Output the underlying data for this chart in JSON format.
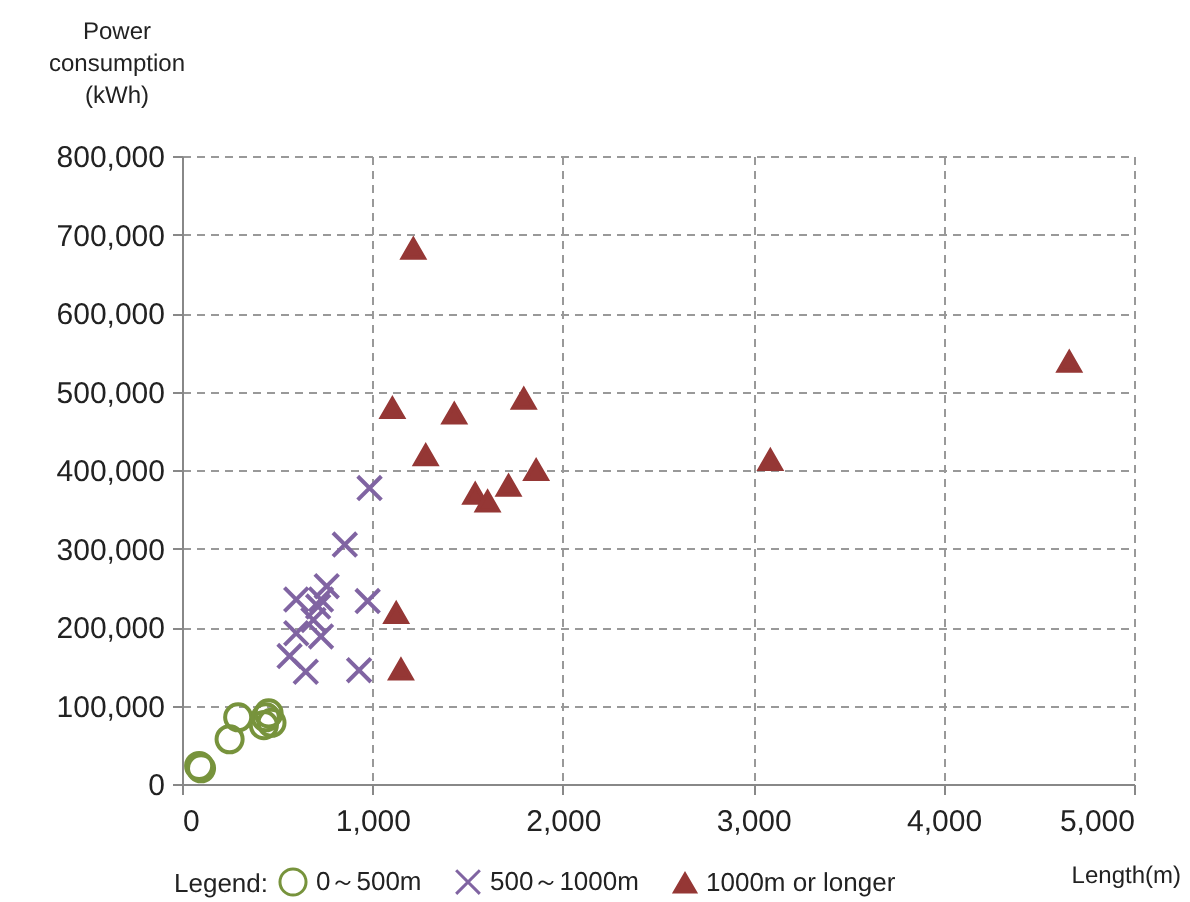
{
  "chart_data": {
    "type": "scatter",
    "xlabel": "Length(m)",
    "ylabel": "Power consumption (kWh)",
    "legend_title": "Legend:",
    "legend": "bottom",
    "grid": true,
    "xlim": [
      0,
      5000
    ],
    "xticks": [
      0,
      {
        "value": 1000,
        "label": "1,000"
      },
      {
        "value": 2000,
        "label": "2,000"
      },
      {
        "value": 3000,
        "label": "3,000"
      },
      {
        "value": 4000,
        "label": "4,000"
      },
      {
        "value": 5000,
        "label": "5,000"
      }
    ],
    "ylim": [
      0,
      800000
    ],
    "yticks": [
      0,
      {
        "value": 100000,
        "label": "100,000"
      },
      {
        "value": 200000,
        "label": "200,000"
      },
      {
        "value": 300000,
        "label": "300,000"
      },
      {
        "value": 400000,
        "label": "400,000"
      },
      {
        "value": 500000,
        "label": "500,000"
      },
      {
        "value": 600000,
        "label": "600,000"
      },
      {
        "value": 700000,
        "label": "700,000"
      },
      {
        "value": 800000,
        "label": "800,000"
      }
    ],
    "series": [
      {
        "name": "0～500m",
        "color": "#77933c",
        "marker": "circle",
        "x": [
          90,
          100,
          250,
          295,
          430,
          455,
          470,
          440
        ],
        "values": [
          23000,
          20000,
          57000,
          85000,
          75000,
          90000,
          78000,
          85000
        ]
      },
      {
        "name": "500～1000m",
        "color": "#8064a2",
        "marker": "cross",
        "x": [
          985,
          855,
          760,
          600,
          715,
          730,
          975,
          600,
          730,
          565,
          650,
          930,
          690
        ],
        "values": [
          377000,
          305000,
          252000,
          235000,
          226000,
          235000,
          233000,
          192000,
          188000,
          163000,
          143000,
          145000,
          209000
        ]
      },
      {
        "name": "1000m or longer",
        "color": "#953735",
        "marker": "triangle",
        "x": [
          1215,
          1105,
          1430,
          1795,
          1280,
          1860,
          1540,
          1605,
          1715,
          1125,
          1150,
          3090,
          4660
        ],
        "values": [
          682000,
          479000,
          472000,
          491000,
          419000,
          400000,
          370000,
          360000,
          380000,
          218000,
          146000,
          413000,
          538000
        ]
      }
    ]
  }
}
